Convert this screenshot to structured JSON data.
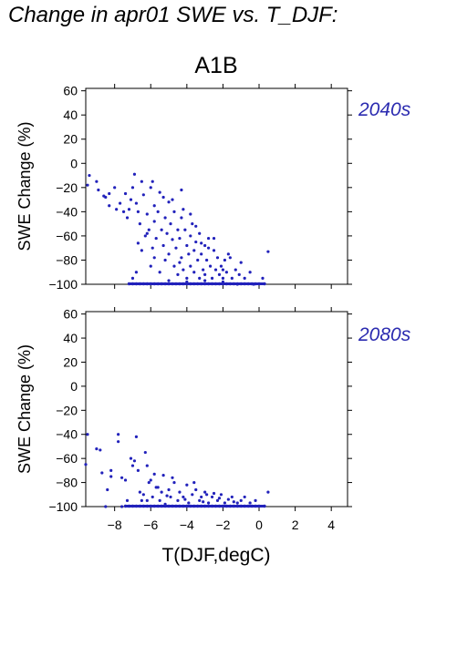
{
  "title": "Change in apr01 SWE vs. T_DJF:",
  "scenario": "A1B",
  "xlabel": "T(DJF,degC)",
  "colors": {
    "points": "#2222bb",
    "period_label": "#2b2bb0",
    "axes": "#000000"
  },
  "chart_data": [
    {
      "type": "scatter",
      "period": "2040s",
      "ylabel": "SWE Change (%)",
      "xlim": [
        -9.6,
        4.9
      ],
      "ylim": [
        -100,
        62
      ],
      "yticks": [
        "60",
        "40",
        "20",
        "0",
        "−20",
        "−40",
        "−60",
        "−80",
        "−100"
      ],
      "xticks": [],
      "points": [
        [
          -9.4,
          -10
        ],
        [
          -9.5,
          -18
        ],
        [
          -9.0,
          -15
        ],
        [
          -8.9,
          -22
        ],
        [
          -8.6,
          -27
        ],
        [
          -8.5,
          -28
        ],
        [
          -8.3,
          -25
        ],
        [
          -8.3,
          -35
        ],
        [
          -8.0,
          -20
        ],
        [
          -7.9,
          -38
        ],
        [
          -7.7,
          -33
        ],
        [
          -7.5,
          -40
        ],
        [
          -7.4,
          -25
        ],
        [
          -7.3,
          -45
        ],
        [
          -7.2,
          -38
        ],
        [
          -7.1,
          -30
        ],
        [
          -7.0,
          -20
        ],
        [
          -6.9,
          -9
        ],
        [
          -6.8,
          -33
        ],
        [
          -6.7,
          -40
        ],
        [
          -6.6,
          -50
        ],
        [
          -6.5,
          -15
        ],
        [
          -6.4,
          -26
        ],
        [
          -6.3,
          -60
        ],
        [
          -6.2,
          -42
        ],
        [
          -6.1,
          -55
        ],
        [
          -6.0,
          -20
        ],
        [
          -5.9,
          -70
        ],
        [
          -5.8,
          -35
        ],
        [
          -5.8,
          -48
        ],
        [
          -5.7,
          -62
        ],
        [
          -5.6,
          -40
        ],
        [
          -5.5,
          -24
        ],
        [
          -5.4,
          -55
        ],
        [
          -5.3,
          -68
        ],
        [
          -5.2,
          -45
        ],
        [
          -5.2,
          -80
        ],
        [
          -5.1,
          -58
        ],
        [
          -5.0,
          -32
        ],
        [
          -5.0,
          -75
        ],
        [
          -4.9,
          -50
        ],
        [
          -4.8,
          -63
        ],
        [
          -4.7,
          -85
        ],
        [
          -4.7,
          -40
        ],
        [
          -4.6,
          -70
        ],
        [
          -4.5,
          -55
        ],
        [
          -4.5,
          -92
        ],
        [
          -4.4,
          -62
        ],
        [
          -4.3,
          -45
        ],
        [
          -4.3,
          -78
        ],
        [
          -4.2,
          -88
        ],
        [
          -4.1,
          -55
        ],
        [
          -4.0,
          -68
        ],
        [
          -4.0,
          -95
        ],
        [
          -3.9,
          -75
        ],
        [
          -3.8,
          -60
        ],
        [
          -3.8,
          -85
        ],
        [
          -3.7,
          -50
        ],
        [
          -3.6,
          -72
        ],
        [
          -3.6,
          -90
        ],
        [
          -3.5,
          -65
        ],
        [
          -3.4,
          -80
        ],
        [
          -3.3,
          -95
        ],
        [
          -3.3,
          -58
        ],
        [
          -3.2,
          -75
        ],
        [
          -3.1,
          -88
        ],
        [
          -3.0,
          -68
        ],
        [
          -3.0,
          -92
        ],
        [
          -2.9,
          -80
        ],
        [
          -2.8,
          -62
        ],
        [
          -2.7,
          -85
        ],
        [
          -2.6,
          -95
        ],
        [
          -2.5,
          -72
        ],
        [
          -2.4,
          -88
        ],
        [
          -2.3,
          -78
        ],
        [
          -2.2,
          -92
        ],
        [
          -2.1,
          -85
        ],
        [
          -2.0,
          -95
        ],
        [
          -1.9,
          -80
        ],
        [
          -1.8,
          -90
        ],
        [
          -1.6,
          -78
        ],
        [
          -1.5,
          -95
        ],
        [
          -1.3,
          -88
        ],
        [
          -1.1,
          -92
        ],
        [
          -0.8,
          -95
        ],
        [
          -0.5,
          -90
        ],
        [
          0.5,
          -73
        ],
        [
          -0.3,
          -100
        ],
        [
          -6.0,
          -85
        ],
        [
          -6.5,
          -72
        ],
        [
          -7.0,
          -95
        ],
        [
          -6.8,
          -90
        ],
        [
          -5.5,
          -90
        ],
        [
          -5.0,
          -97
        ],
        [
          -4.0,
          -98
        ],
        [
          -3.0,
          -97
        ],
        [
          -2.0,
          -98
        ],
        [
          -4.8,
          -30
        ],
        [
          -5.3,
          -28
        ],
        [
          -6.2,
          -58
        ],
        [
          -6.7,
          -66
        ],
        [
          -3.5,
          -52
        ],
        [
          -4.2,
          -38
        ],
        [
          -3.8,
          -42
        ],
        [
          -2.8,
          -70
        ],
        [
          -2.5,
          -62
        ],
        [
          -1.7,
          -75
        ],
        [
          -1.0,
          -82
        ],
        [
          0.2,
          -95
        ],
        [
          -5.8,
          -78
        ],
        [
          -4.4,
          -82
        ],
        [
          -3.2,
          -66
        ],
        [
          -2.0,
          -88
        ],
        [
          -1.2,
          -100
        ],
        [
          -4.3,
          -22
        ],
        [
          -5.9,
          -15
        ]
      ],
      "floor_points_x": [
        -7.2,
        -7.0,
        -6.8,
        -6.6,
        -6.4,
        -6.2,
        -6.0,
        -5.8,
        -5.6,
        -5.4,
        -5.2,
        -5.0,
        -4.8,
        -4.6,
        -4.4,
        -4.2,
        -4.0,
        -3.8,
        -3.6,
        -3.4,
        -3.2,
        -3.0,
        -2.8,
        -2.6,
        -2.4,
        -2.2,
        -2.0,
        -1.8,
        -1.6,
        -1.4,
        -1.2,
        -1.0,
        -0.8,
        -0.6,
        -0.4,
        -0.2,
        0.0,
        0.3
      ]
    },
    {
      "type": "scatter",
      "period": "2080s",
      "ylabel": "SWE Change (%)",
      "xlim": [
        -9.6,
        4.9
      ],
      "ylim": [
        -100,
        62
      ],
      "yticks": [
        "60",
        "40",
        "20",
        "0",
        "−20",
        "−40",
        "−60",
        "−80",
        "−100"
      ],
      "xticks": [
        -8,
        -6,
        -4,
        -2,
        0,
        2,
        4
      ],
      "points": [
        [
          -9.5,
          -40
        ],
        [
          -9.6,
          -65
        ],
        [
          -9.0,
          -52
        ],
        [
          -8.8,
          -53
        ],
        [
          -8.7,
          -72
        ],
        [
          -8.4,
          -86
        ],
        [
          -8.2,
          -70
        ],
        [
          -8.2,
          -75
        ],
        [
          -7.8,
          -40
        ],
        [
          -7.8,
          -46
        ],
        [
          -7.6,
          -76
        ],
        [
          -7.4,
          -78
        ],
        [
          -7.3,
          -95
        ],
        [
          -7.1,
          -60
        ],
        [
          -7.0,
          -66
        ],
        [
          -6.8,
          -42
        ],
        [
          -6.7,
          -70
        ],
        [
          -6.6,
          -88
        ],
        [
          -6.5,
          -95
        ],
        [
          -6.3,
          -55
        ],
        [
          -6.2,
          -66
        ],
        [
          -6.1,
          -80
        ],
        [
          -5.9,
          -92
        ],
        [
          -5.8,
          -73
        ],
        [
          -5.7,
          -84
        ],
        [
          -5.5,
          -95
        ],
        [
          -5.4,
          -88
        ],
        [
          -5.3,
          -74
        ],
        [
          -5.2,
          -98
        ],
        [
          -5.0,
          -86
        ],
        [
          -4.9,
          -92
        ],
        [
          -4.7,
          -80
        ],
        [
          -4.5,
          -95
        ],
        [
          -4.4,
          -88
        ],
        [
          -4.2,
          -92
        ],
        [
          -4.0,
          -82
        ],
        [
          -3.9,
          -97
        ],
        [
          -3.7,
          -90
        ],
        [
          -3.5,
          -86
        ],
        [
          -3.3,
          -95
        ],
        [
          -3.2,
          -92
        ],
        [
          -3.0,
          -88
        ],
        [
          -2.8,
          -97
        ],
        [
          -2.6,
          -92
        ],
        [
          -2.5,
          -89
        ],
        [
          -2.3,
          -95
        ],
        [
          -2.1,
          -90
        ],
        [
          -1.9,
          -97
        ],
        [
          -1.7,
          -94
        ],
        [
          -1.5,
          -92
        ],
        [
          -1.2,
          -97
        ],
        [
          -1.0,
          -95
        ],
        [
          -0.8,
          -92
        ],
        [
          -0.5,
          -97
        ],
        [
          0.5,
          -88
        ],
        [
          -6.9,
          -62
        ],
        [
          -6.0,
          -78
        ],
        [
          -5.6,
          -84
        ],
        [
          -4.8,
          -76
        ],
        [
          -3.6,
          -80
        ],
        [
          -2.9,
          -90
        ],
        [
          -2.2,
          -93
        ],
        [
          -1.4,
          -96
        ],
        [
          -0.2,
          -95
        ],
        [
          -6.4,
          -90
        ],
        [
          -5.1,
          -91
        ],
        [
          -4.1,
          -94
        ],
        [
          -3.1,
          -96
        ],
        [
          -6.2,
          -95
        ],
        [
          -7.6,
          -100
        ],
        [
          -8.5,
          -100
        ]
      ],
      "floor_points_x": [
        -7.4,
        -7.2,
        -7.0,
        -6.8,
        -6.6,
        -6.4,
        -6.2,
        -6.0,
        -5.8,
        -5.6,
        -5.4,
        -5.2,
        -5.0,
        -4.8,
        -4.6,
        -4.4,
        -4.2,
        -4.0,
        -3.8,
        -3.6,
        -3.4,
        -3.2,
        -3.0,
        -2.8,
        -2.6,
        -2.4,
        -2.2,
        -2.0,
        -1.8,
        -1.6,
        -1.4,
        -1.2,
        -1.0,
        -0.8,
        -0.6,
        -0.4,
        -0.2,
        0.0,
        0.3
      ]
    }
  ]
}
